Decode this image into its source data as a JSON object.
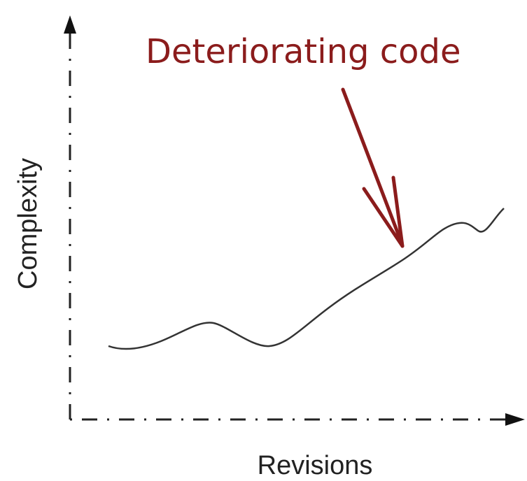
{
  "annotation": "Deteriorating code",
  "y_axis_label": "Complexity",
  "x_axis_label": "Revisions"
}
